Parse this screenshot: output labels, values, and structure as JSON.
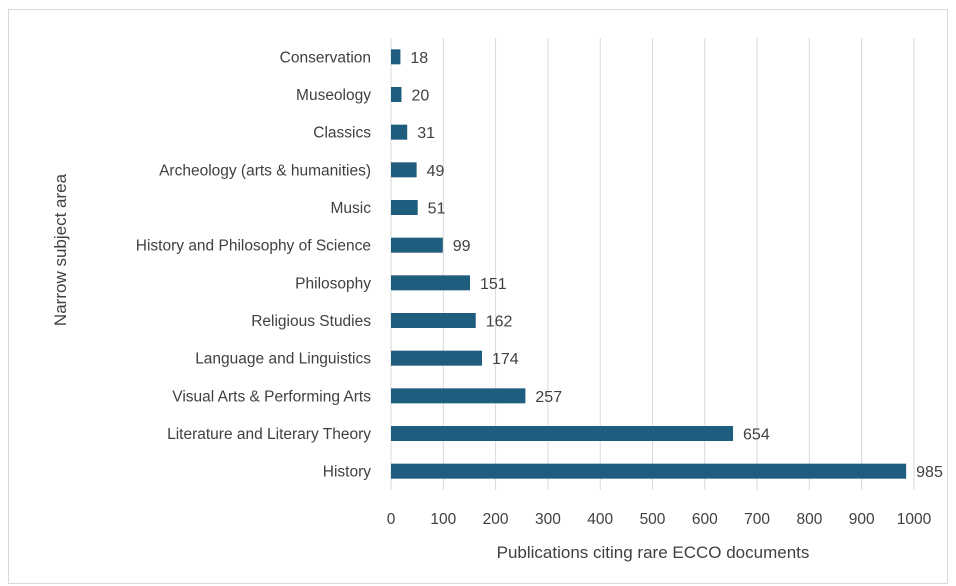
{
  "chart_data": {
    "type": "bar",
    "orientation": "horizontal",
    "categories": [
      "Conservation",
      "Museology",
      "Classics",
      "Archeology (arts & humanities)",
      "Music",
      "History and Philosophy of Science",
      "Philosophy",
      "Religious Studies",
      "Language and Linguistics",
      "Visual Arts & Performing Arts",
      "Literature and Literary Theory",
      "History"
    ],
    "values": [
      18,
      20,
      31,
      49,
      51,
      99,
      151,
      162,
      174,
      257,
      654,
      985
    ],
    "title": "",
    "xlabel": "Publications citing rare ECCO documents",
    "ylabel": "Narrow subject area",
    "xlim": [
      0,
      1000
    ],
    "xticks": [
      0,
      100,
      200,
      300,
      400,
      500,
      600,
      700,
      800,
      900,
      1000
    ],
    "grid": "vertical",
    "legend": "none",
    "bar_color": "#1f5d7e",
    "data_labels": true
  }
}
